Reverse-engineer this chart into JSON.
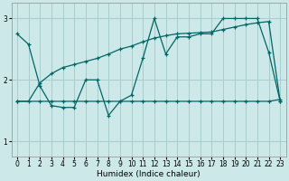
{
  "xlabel": "Humidex (Indice chaleur)",
  "bg_color": "#cce8e8",
  "grid_color": "#aacccc",
  "line_color": "#006666",
  "xlim": [
    -0.5,
    23.5
  ],
  "ylim": [
    0.75,
    3.25
  ],
  "xticks": [
    0,
    1,
    2,
    3,
    4,
    5,
    6,
    7,
    8,
    9,
    10,
    11,
    12,
    13,
    14,
    15,
    16,
    17,
    18,
    19,
    20,
    21,
    22,
    23
  ],
  "yticks": [
    1,
    2,
    3
  ],
  "series1_x": [
    0,
    1,
    2,
    3,
    4,
    5,
    6,
    7,
    8,
    9,
    10,
    11,
    12,
    13,
    14,
    15,
    16,
    17,
    18,
    19,
    20,
    21,
    22,
    23
  ],
  "series1_y": [
    2.75,
    2.58,
    1.9,
    1.58,
    1.55,
    1.55,
    2.0,
    2.0,
    1.42,
    1.65,
    1.75,
    2.35,
    3.0,
    2.42,
    2.7,
    2.7,
    2.75,
    2.75,
    3.0,
    3.0,
    3.0,
    3.0,
    2.45,
    1.65
  ],
  "series2_x": [
    0,
    1,
    2,
    3,
    4,
    5,
    6,
    7,
    8,
    9,
    10,
    11,
    12,
    13,
    14,
    15,
    16,
    17,
    18,
    19,
    20,
    21,
    22,
    23
  ],
  "series2_y": [
    1.65,
    1.65,
    1.95,
    2.1,
    2.2,
    2.25,
    2.3,
    2.35,
    2.42,
    2.5,
    2.55,
    2.62,
    2.68,
    2.72,
    2.75,
    2.76,
    2.77,
    2.78,
    2.82,
    2.86,
    2.9,
    2.93,
    2.95,
    1.65
  ],
  "series3_x": [
    0,
    2,
    3,
    4,
    5,
    6,
    7,
    8,
    9,
    10,
    11,
    12,
    13,
    14,
    15,
    16,
    17,
    18,
    19,
    20,
    21,
    22,
    23
  ],
  "series3_y": [
    1.65,
    1.65,
    1.65,
    1.65,
    1.65,
    1.65,
    1.65,
    1.65,
    1.65,
    1.65,
    1.65,
    1.65,
    1.65,
    1.65,
    1.65,
    1.65,
    1.65,
    1.65,
    1.65,
    1.65,
    1.65,
    1.65,
    1.68
  ]
}
